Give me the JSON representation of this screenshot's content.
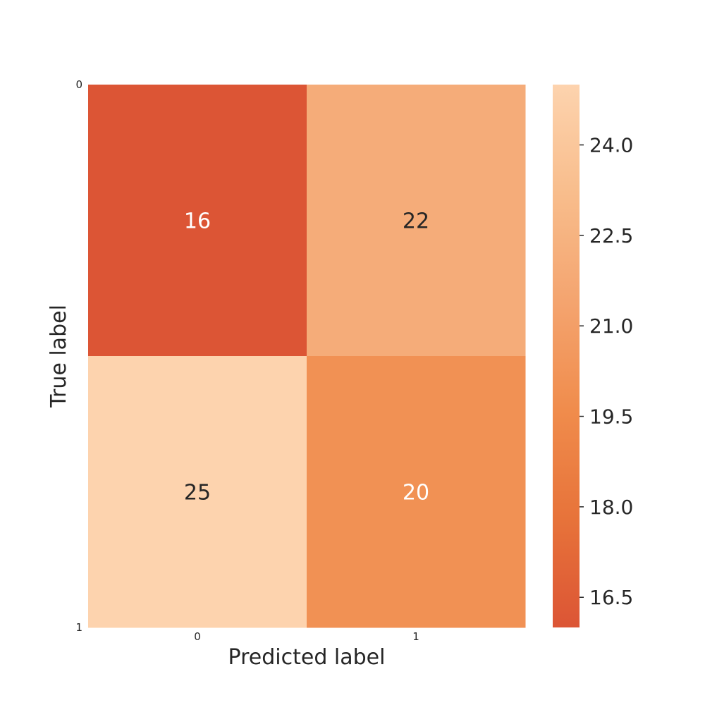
{
  "chart_data": {
    "type": "heatmap",
    "xlabel": "Predicted label",
    "ylabel": "True label",
    "x_categories": [
      "0",
      "1"
    ],
    "y_categories": [
      "0",
      "1"
    ],
    "matrix": [
      [
        16,
        22
      ],
      [
        25,
        20
      ]
    ],
    "cell_labels": [
      [
        "16",
        "22"
      ],
      [
        "25",
        "20"
      ]
    ],
    "colorbar": {
      "range": [
        16.0,
        25.0
      ],
      "ticks": [
        16.5,
        18.0,
        19.5,
        21.0,
        22.5,
        24.0
      ],
      "tick_labels": [
        "16.5",
        "18.0",
        "19.5",
        "21.0",
        "22.5",
        "24.0"
      ],
      "colormap_stops": [
        "#dc5535",
        "#e7733a",
        "#f08c4c",
        "#f4a46f",
        "#f8bd8c",
        "#fdd3ae"
      ]
    },
    "text_colors": {
      "on_dark": "#ffffff",
      "on_light": "#262626"
    }
  }
}
